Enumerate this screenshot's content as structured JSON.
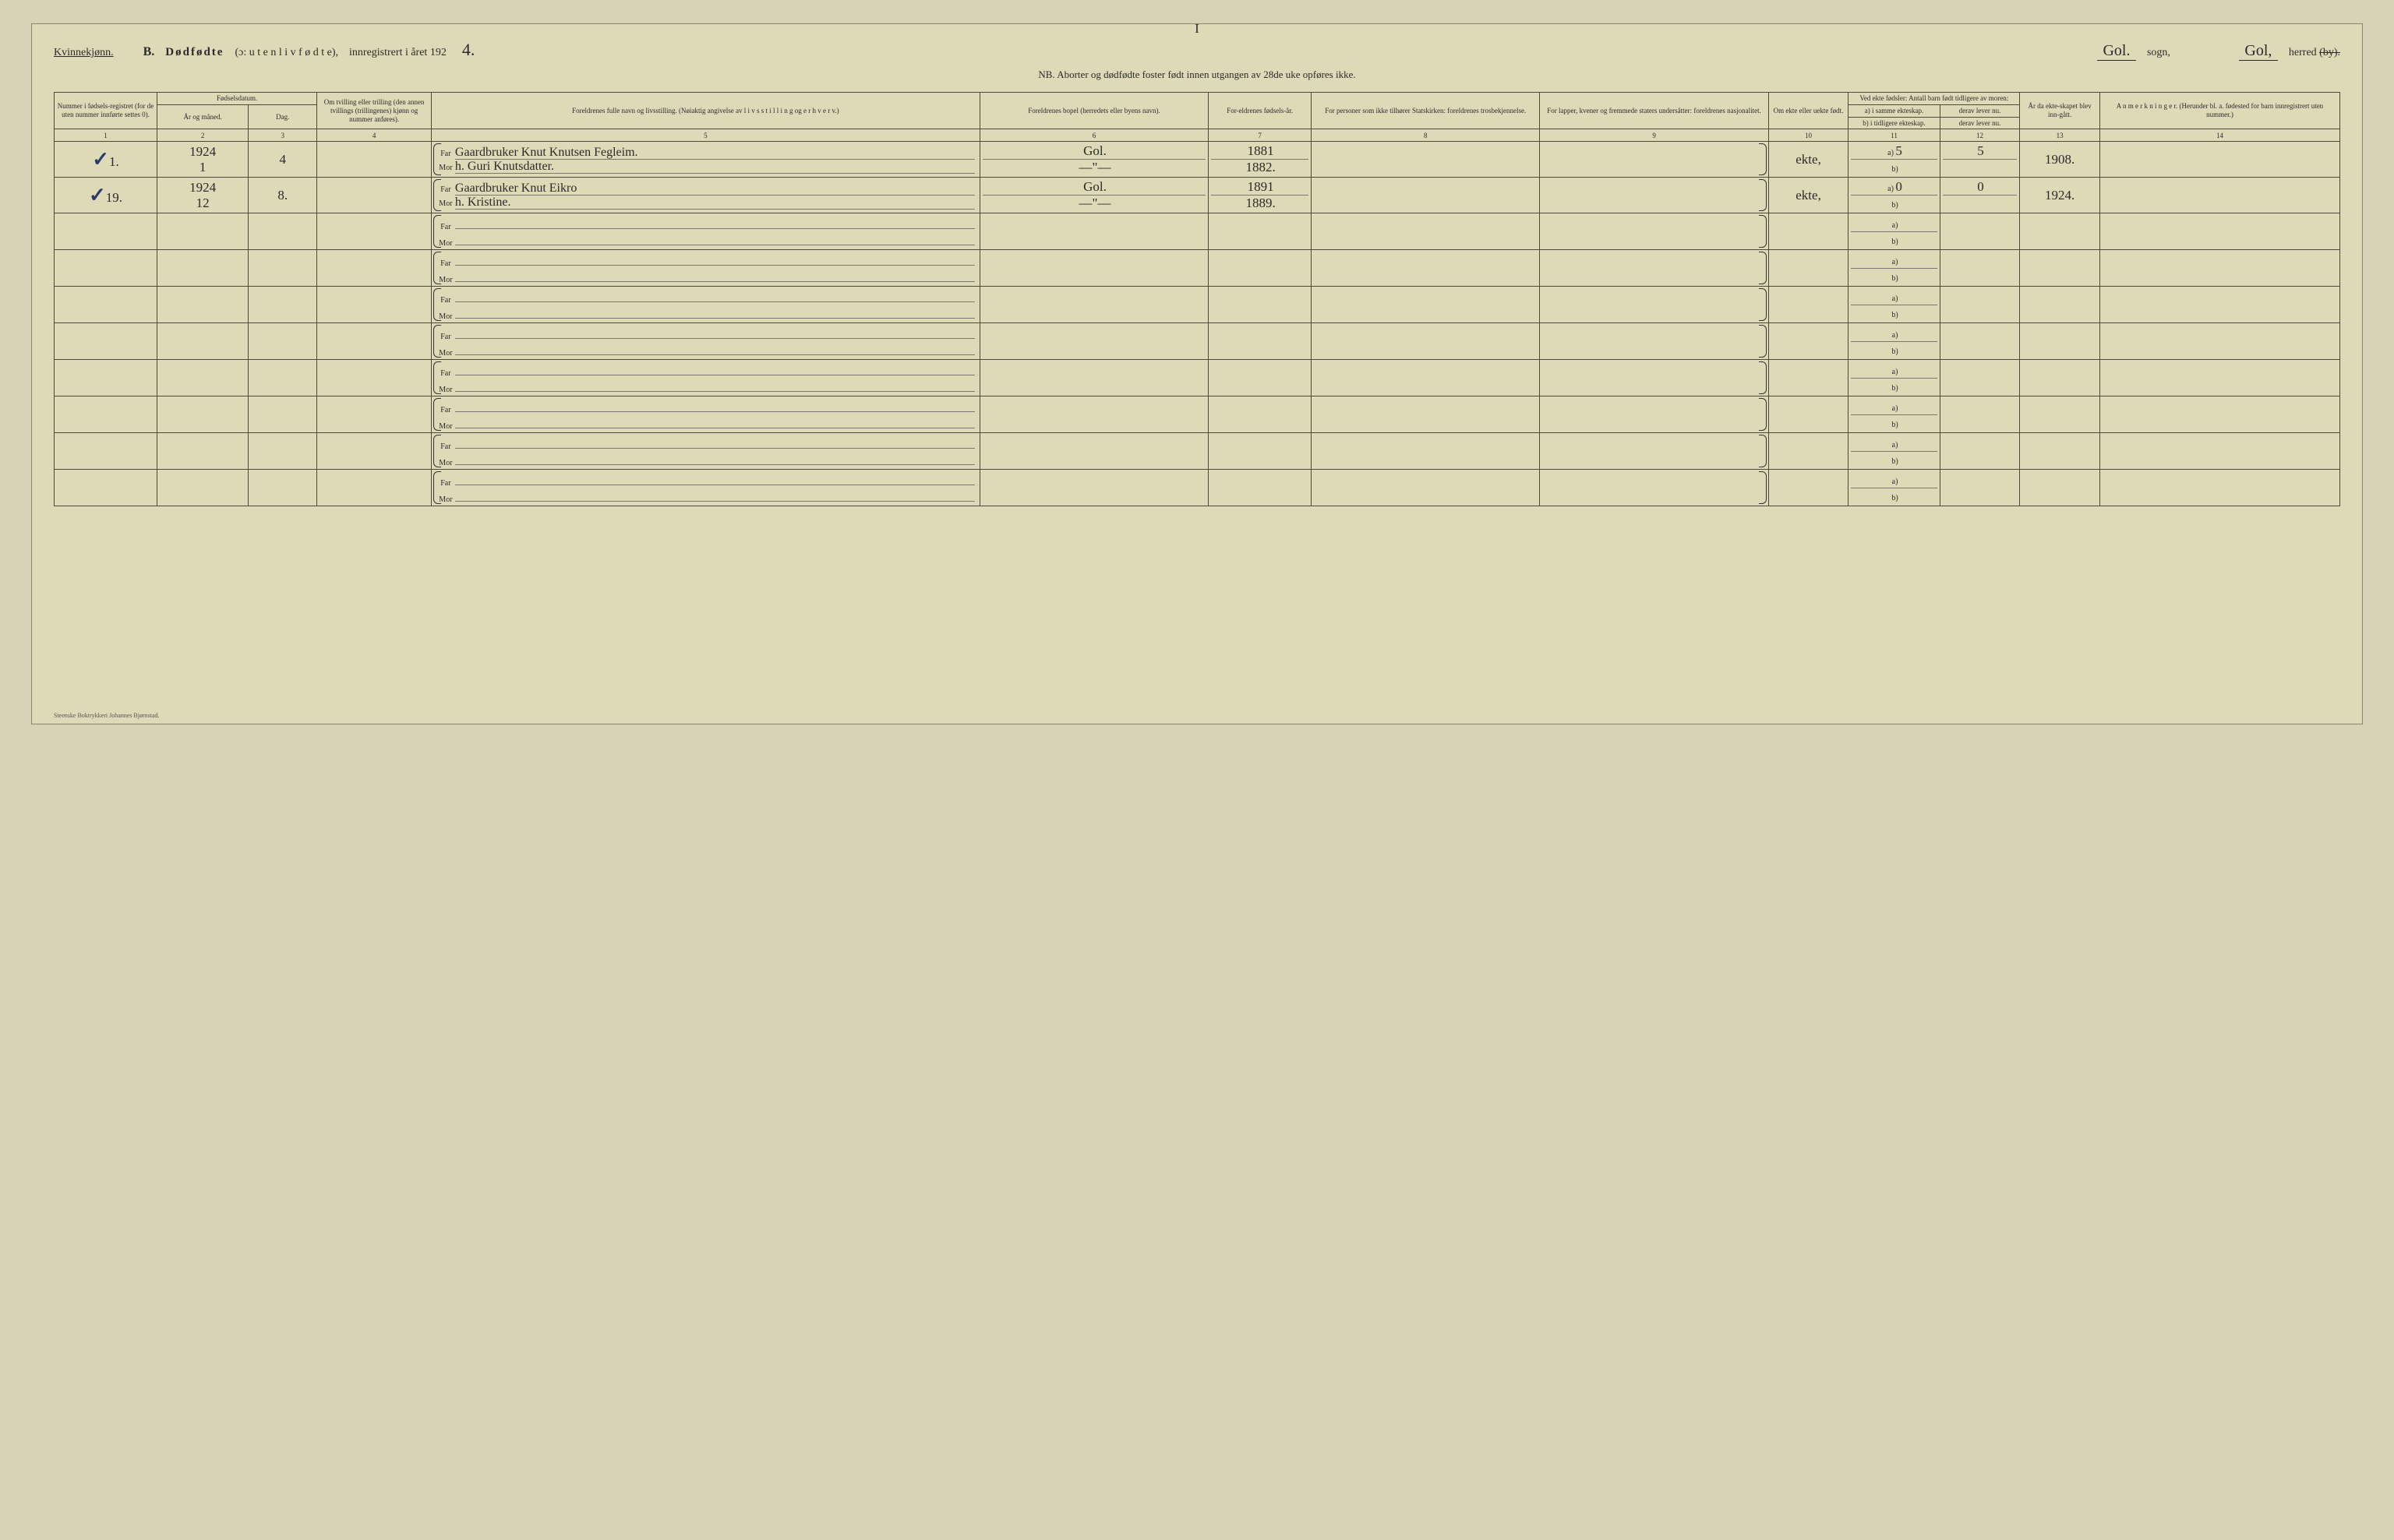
{
  "pageMark": "I",
  "gender": "Kvinnekjønn.",
  "sectionLetter": "B.",
  "titleBold": "Dødfødte",
  "titleParen": "(ɔ:  u t e n  l i v  f ø d t e),",
  "titleRest": "innregistrert i året 192",
  "yearSuffix": "4.",
  "sogn": "Gol.",
  "sognLabel": "sogn,",
  "herred": "Gol,",
  "herredLabel": "herred",
  "herredStrike": "(by).",
  "nb": "NB.  Aborter og dødfødte foster født innen utgangen av 28de uke opføres ikke.",
  "headers": {
    "c1": "Nummer i fødsels-registret (for de uten nummer innførte settes 0).",
    "c2top": "Fødselsdatum.",
    "c2a": "År og måned.",
    "c2b": "Dag.",
    "c4": "Om tvilling eller trilling (den annen tvillings (trillingenes) kjønn og nummer anføres).",
    "c5": "Foreldrenes fulle navn og livsstilling. (Nøiaktig angivelse av  l i v s s t i l l i n g  og  e r h v e r v.)",
    "c6": "Foreldrenes bopel (herredets eller byens navn).",
    "c7": "For-eldrenes fødsels-år.",
    "c8": "For personer som ikke tilhører Statskirken: foreldrenes trosbekjennelse.",
    "c9": "For lapper, kvener og fremmede staters undersåtter: foreldrenes nasjonalitet.",
    "c10": "Om ekte eller uekte født.",
    "c11top": "Ved ekte fødsler: Antall barn født tidligere av moren:",
    "c11a": "a) i samme ekteskap.",
    "c11b": "b) i tidligere ekteskap.",
    "c12a": "derav lever nu.",
    "c12b": "derav lever nu.",
    "c13": "År da ekte-skapet blev inn-gått.",
    "c14": "A n m e r k n i n g e r. (Herunder bl. a. fødested for barn innregistrert uten nummer.)"
  },
  "colNums": [
    "1",
    "2",
    "3",
    "4",
    "5",
    "6",
    "7",
    "8",
    "9",
    "10",
    "11",
    "12",
    "13",
    "14"
  ],
  "farLabel": "Far",
  "morLabel": "Mor",
  "abA": "a)",
  "abB": "b)",
  "rows": [
    {
      "check": "✓",
      "num": "1.",
      "yearMonth": "1924 / 1",
      "day": "4",
      "twin": "",
      "far": "Gaardbruker Knut Knutsen Fegleim.",
      "mor": "h. Guri Knutsdatter.",
      "bopelFar": "Gol.",
      "bopelMor": "—\"—",
      "farYear": "1881",
      "morYear": "1882.",
      "c8": "",
      "c9": "",
      "ekte": "ekte,",
      "a11": "5",
      "a12": "5",
      "b11": "",
      "b12": "",
      "c13": "1908.",
      "c14": ""
    },
    {
      "check": "✓",
      "num": "19.",
      "yearMonth": "1924 / 12",
      "day": "8.",
      "twin": "",
      "far": "Gaardbruker Knut Eikro",
      "mor": "h. Kristine.",
      "bopelFar": "Gol.",
      "bopelMor": "—\"—",
      "farYear": "1891",
      "morYear": "1889.",
      "c8": "",
      "c9": "",
      "ekte": "ekte,",
      "a11": "0",
      "a12": "0",
      "b11": "",
      "b12": "",
      "c13": "1924.",
      "c14": ""
    }
  ],
  "emptyRowCount": 8,
  "footer": "Steenske Boktrykkeri Johannes Bjørnstad."
}
